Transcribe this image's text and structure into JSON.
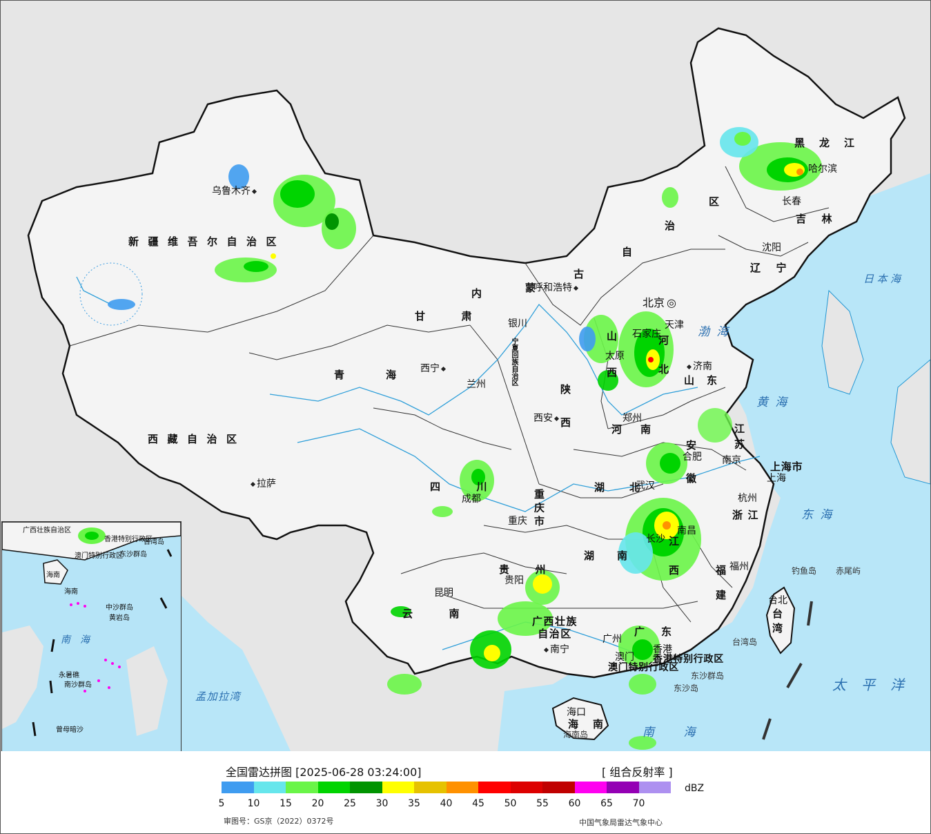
{
  "legend": {
    "title": "全国雷达拼图 [2025-06-28 03:24:00]",
    "product": "[ 组合反射率 ]",
    "unit": "dBZ",
    "ticks": [
      "5",
      "10",
      "15",
      "20",
      "25",
      "30",
      "35",
      "40",
      "45",
      "50",
      "55",
      "60",
      "65",
      "70"
    ],
    "colors": [
      "#3f9cf0",
      "#66e6ec",
      "#6af548",
      "#00d400",
      "#019401",
      "#ffff00",
      "#e6c200",
      "#ff9100",
      "#ff0000",
      "#dd0000",
      "#c00000",
      "#ff00f0",
      "#9400b4",
      "#ad90f0"
    ],
    "approval": "审图号：GS京（2022）0372号",
    "credit": "中国气象局雷达气象中心"
  },
  "provinces": [
    {
      "id": "xinjiang",
      "text": "新疆维吾尔自治区"
    },
    {
      "id": "xizang",
      "text": "西藏自治区"
    },
    {
      "id": "qinghai",
      "text": "青海"
    },
    {
      "id": "gansu",
      "text": "甘肃"
    },
    {
      "id": "sichuan",
      "text": "四川"
    },
    {
      "id": "yunnan",
      "text": "云南"
    },
    {
      "id": "guizhou",
      "text": "贵州"
    },
    {
      "id": "chongqing",
      "text": "重庆市"
    },
    {
      "id": "shaanxi",
      "text": "陕西"
    },
    {
      "id": "henan",
      "text": "河南"
    },
    {
      "id": "hubei",
      "text": "湖北"
    },
    {
      "id": "hunan",
      "text": "湖南"
    },
    {
      "id": "jiangxi",
      "text": "江西"
    },
    {
      "id": "fujian",
      "text": "福建"
    },
    {
      "id": "zhejiang",
      "text": "浙江"
    },
    {
      "id": "anhui",
      "text": "安徽"
    },
    {
      "id": "jiangsu",
      "text": "江苏"
    },
    {
      "id": "shandong",
      "text": "山东"
    },
    {
      "id": "hebei",
      "text": "河北"
    },
    {
      "id": "shanxi",
      "text": "山西"
    },
    {
      "id": "liaoning",
      "text": "辽宁"
    },
    {
      "id": "jilin",
      "text": "吉林"
    },
    {
      "id": "heilongjiang",
      "text": "黑龙江"
    },
    {
      "id": "guangdong",
      "text": "广东"
    },
    {
      "id": "hainan",
      "text": "海南"
    },
    {
      "id": "taiwan",
      "text": "台湾"
    },
    {
      "id": "guangxi",
      "text": "广西壮族自治区"
    },
    {
      "id": "shanghai",
      "text": "上海市"
    },
    {
      "id": "xianggang",
      "text": "香港特别行政区"
    },
    {
      "id": "aomen",
      "text": "澳门特别行政区"
    }
  ],
  "neimenggu": [
    "内",
    "蒙",
    "古",
    "自",
    "治",
    "区"
  ],
  "ningxia": "宁夏回族自治区",
  "cities": [
    {
      "id": "urumqi",
      "text": "乌鲁木齐"
    },
    {
      "id": "lhasa",
      "text": "拉萨"
    },
    {
      "id": "xining",
      "text": "西宁"
    },
    {
      "id": "lanzhou",
      "text": "兰州"
    },
    {
      "id": "yinchuan",
      "text": "银川"
    },
    {
      "id": "hohhot",
      "text": "呼和浩特"
    },
    {
      "id": "beijing",
      "text": "北京"
    },
    {
      "id": "tianjin",
      "text": "天津"
    },
    {
      "id": "shijiazhuang",
      "text": "石家庄"
    },
    {
      "id": "taiyuan",
      "text": "太原"
    },
    {
      "id": "jinan",
      "text": "济南"
    },
    {
      "id": "zhengzhou",
      "text": "郑州"
    },
    {
      "id": "xian",
      "text": "西安"
    },
    {
      "id": "chengdu",
      "text": "成都"
    },
    {
      "id": "chongqing_c",
      "text": "重庆"
    },
    {
      "id": "guiyang",
      "text": "贵阳"
    },
    {
      "id": "kunming",
      "text": "昆明"
    },
    {
      "id": "nanning",
      "text": "南宁"
    },
    {
      "id": "guangzhou",
      "text": "广州"
    },
    {
      "id": "haikou",
      "text": "海口"
    },
    {
      "id": "changsha",
      "text": "长沙"
    },
    {
      "id": "wuhan",
      "text": "武汉"
    },
    {
      "id": "nanchang",
      "text": "南昌"
    },
    {
      "id": "hefei",
      "text": "合肥"
    },
    {
      "id": "nanjing",
      "text": "南京"
    },
    {
      "id": "shanghai_c",
      "text": "上海"
    },
    {
      "id": "hangzhou",
      "text": "杭州"
    },
    {
      "id": "fuzhou",
      "text": "福州"
    },
    {
      "id": "taibei",
      "text": "台北"
    },
    {
      "id": "shenyang",
      "text": "沈阳"
    },
    {
      "id": "changchun",
      "text": "长春"
    },
    {
      "id": "harbin",
      "text": "哈尔滨"
    },
    {
      "id": "xianggang_c",
      "text": "香港"
    },
    {
      "id": "aomen_c",
      "text": "澳门"
    }
  ],
  "seas": [
    {
      "id": "bohai",
      "text": "渤海"
    },
    {
      "id": "huanghai",
      "text": "黄海"
    },
    {
      "id": "donghai",
      "text": "东海"
    },
    {
      "id": "nanhai",
      "text": "南海"
    },
    {
      "id": "ribenhai",
      "text": "日本海"
    },
    {
      "id": "taipingyang",
      "text": "太平洋"
    },
    {
      "id": "mengjialawan",
      "text": "孟加拉湾"
    }
  ],
  "islands": [
    {
      "id": "diaoyudao",
      "text": "钓鱼岛"
    },
    {
      "id": "chiweiyu",
      "text": "赤尾屿"
    },
    {
      "id": "taiwandao",
      "text": "台湾岛"
    },
    {
      "id": "dongshaqundao",
      "text": "东沙群岛"
    },
    {
      "id": "dongshadao",
      "text": "东沙岛"
    },
    {
      "id": "hainandao",
      "text": "海南岛"
    }
  ],
  "inset": {
    "labels": [
      "广西壮族自治区",
      "海南",
      "香港特别行政区",
      "澳门特别行政区",
      "东沙群岛",
      "台湾岛",
      "海南",
      "中沙群岛",
      "黄岩岛",
      "南海",
      "永暑礁",
      "南沙群岛",
      "曾母暗沙"
    ]
  }
}
